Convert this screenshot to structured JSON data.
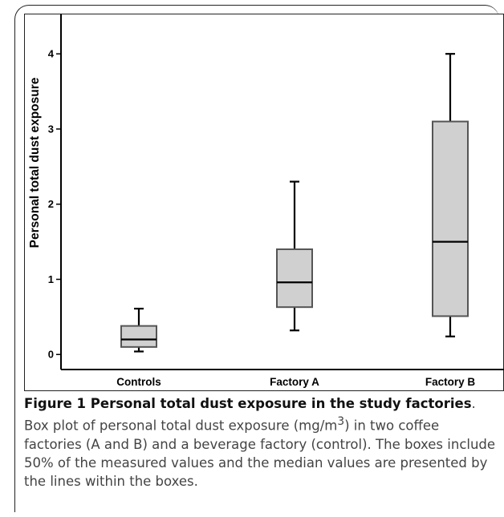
{
  "chart_data": {
    "type": "boxplot",
    "ylabel": "Personal total dust exposure",
    "xlabel": "",
    "ylim": [
      -0.2,
      4.45
    ],
    "yticks": [
      0,
      1,
      2,
      3,
      4
    ],
    "categories": [
      "Controls",
      "Factory A",
      "Factory B"
    ],
    "boxes": [
      {
        "category": "Controls",
        "min": 0.04,
        "q1": 0.1,
        "median": 0.2,
        "q3": 0.38,
        "max": 0.61
      },
      {
        "category": "Factory A",
        "min": 0.32,
        "q1": 0.63,
        "median": 0.96,
        "q3": 1.4,
        "max": 2.3
      },
      {
        "category": "Factory B",
        "min": 0.24,
        "q1": 0.51,
        "median": 1.5,
        "q3": 3.1,
        "max": 4.0
      }
    ],
    "colors": {
      "box_fill": "#d0d0d0",
      "box_stroke": "#555555",
      "whisker": "#000000",
      "median": "#000000"
    }
  },
  "caption": {
    "title": "Figure 1 Personal total dust exposure in the study factories",
    "body_before_sup": ". Box plot of personal total dust exposure (mg/m",
    "superscript": "3",
    "body_after_sup": ") in two coffee factories (A and B) and a beverage factory (control). The boxes include 50% of the measured values and the median values are presented by the lines within the boxes."
  }
}
